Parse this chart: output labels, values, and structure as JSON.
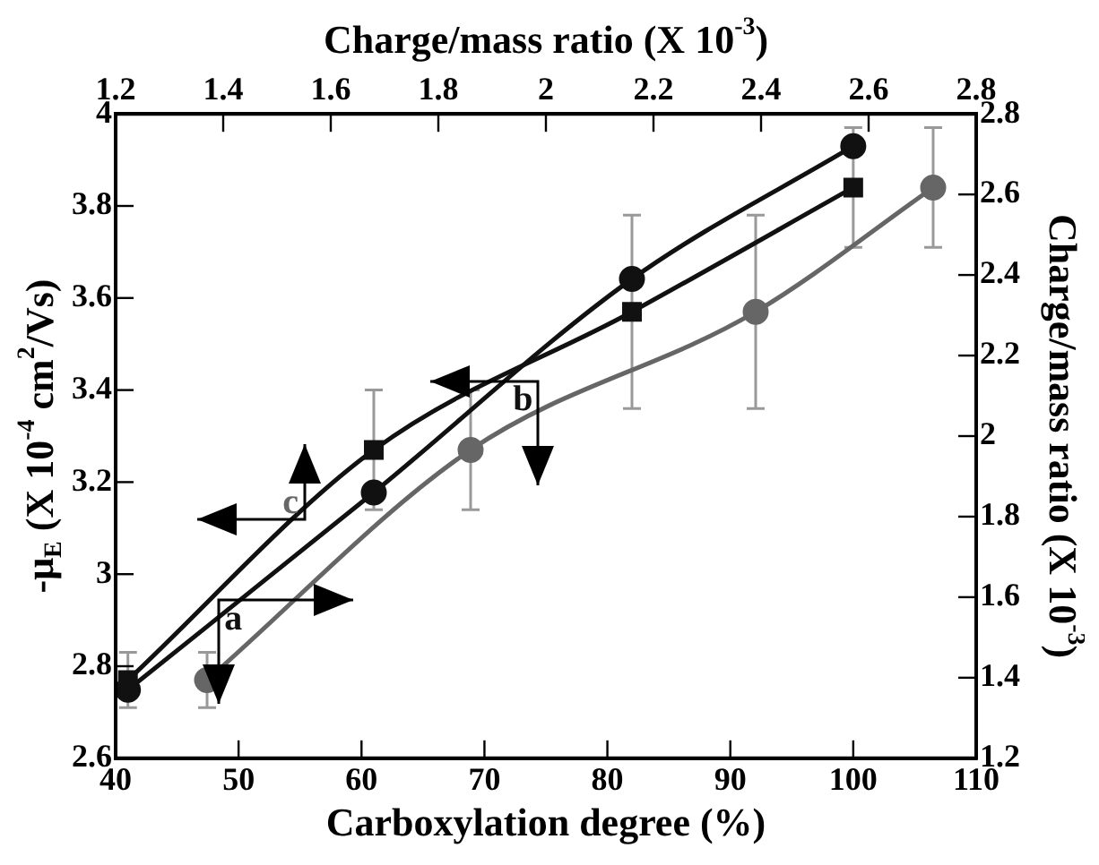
{
  "chart_data": {
    "type": "line",
    "xlabel": "Carboxylation degree (%)",
    "ylabel": "-μ$_{E}$ (X 10$^{-4}$ cm$^{2}$/Vs)",
    "y2label": "Charge/mass ratio (X 10$^{-3}$)",
    "x2label": "Charge/mass ratio (X 10$^{-3}$)",
    "series": [
      {
        "name": "a",
        "axis": "y2",
        "color": "#111111",
        "x": [
          41,
          61,
          82,
          100
        ],
        "values": [
          1.37,
          1.86,
          2.39,
          2.72
        ]
      },
      {
        "name": "b",
        "axis": "y",
        "color": "#111111",
        "marker": "square",
        "x": [
          41,
          61,
          82,
          100
        ],
        "values": [
          2.77,
          3.27,
          3.57,
          3.84
        ],
        "errors": [
          0.06,
          0.13,
          0.21,
          0.13
        ]
      },
      {
        "name": "c",
        "axis": "x2",
        "color": "#666666",
        "x": [
          1.37,
          1.86,
          2.39,
          2.72
        ],
        "values": [
          2.77,
          3.27,
          3.57,
          3.84
        ],
        "errors": [
          0.06,
          0.13,
          0.21,
          0.13
        ]
      }
    ],
    "xlim": [
      40,
      110
    ],
    "xticks": [
      40,
      50,
      60,
      70,
      80,
      90,
      100,
      110
    ],
    "x2lim": [
      1.2,
      2.8
    ],
    "x2ticks": [
      1.2,
      1.4,
      1.6,
      1.8,
      2,
      2.2,
      2.4,
      2.6,
      2.8
    ],
    "ylim": [
      2.6,
      4
    ],
    "yticks": [
      2.6,
      2.8,
      3,
      3.2,
      3.4,
      3.6,
      3.8,
      4
    ],
    "y2lim": [
      1.2,
      2.8
    ],
    "y2ticks": [
      1.2,
      1.4,
      1.6,
      1.8,
      2,
      2.2,
      2.4,
      2.6,
      2.8
    ],
    "marker": "circle",
    "grid": false,
    "legend": false
  }
}
